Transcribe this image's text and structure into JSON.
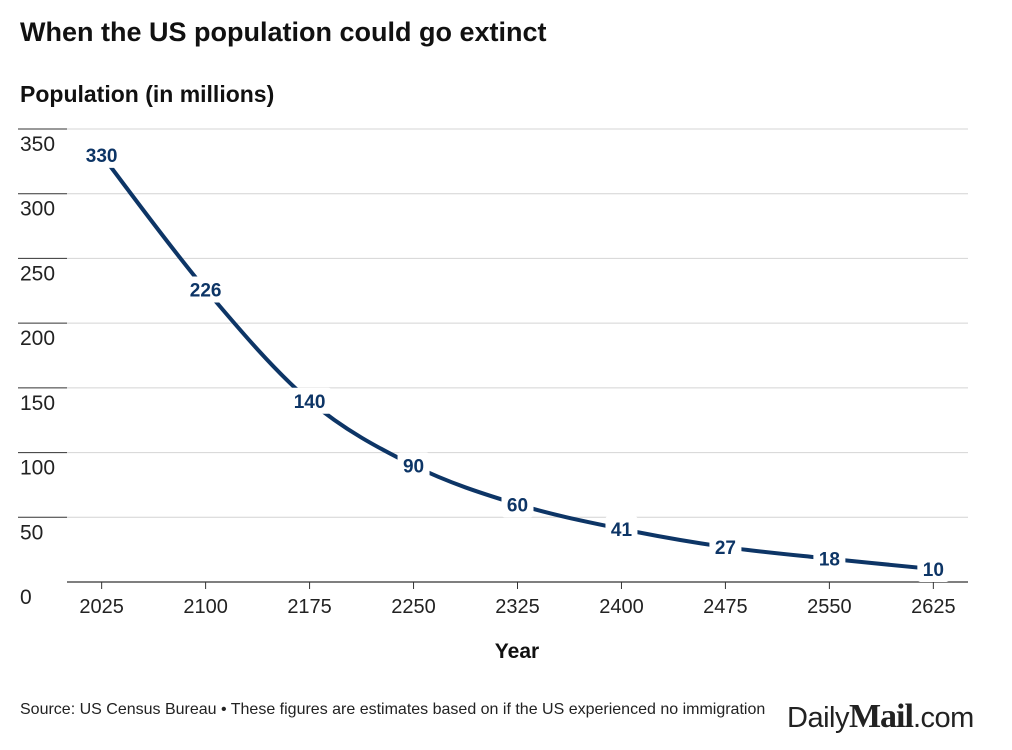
{
  "header": {
    "title": "When the US population could go extinct",
    "subtitle": "Population (in millions)"
  },
  "footer": {
    "source": "Source: US Census Bureau • These figures are estimates based on if the US experienced no immigration",
    "logo_prefix": "Daily",
    "logo_main": "Mail",
    "logo_suffix": ".com"
  },
  "colors": {
    "line": "#0d3566",
    "grid": "#d4d4d4",
    "axis": "#333333"
  },
  "chart_data": {
    "type": "line",
    "title": "When the US population could go extinct",
    "ylabel": "Population (in millions)",
    "xlabel": "Year",
    "x": [
      2025,
      2100,
      2175,
      2250,
      2325,
      2400,
      2475,
      2550,
      2625
    ],
    "values": [
      330,
      226,
      140,
      90,
      60,
      41,
      27,
      18,
      10
    ],
    "ylim": [
      0,
      350
    ],
    "xlim": [
      2000,
      2650
    ],
    "yticks": [
      0,
      50,
      100,
      150,
      200,
      250,
      300,
      350
    ],
    "xticks": [
      2025,
      2100,
      2175,
      2250,
      2325,
      2400,
      2475,
      2550,
      2625
    ],
    "grid": true,
    "data_labels": true
  }
}
